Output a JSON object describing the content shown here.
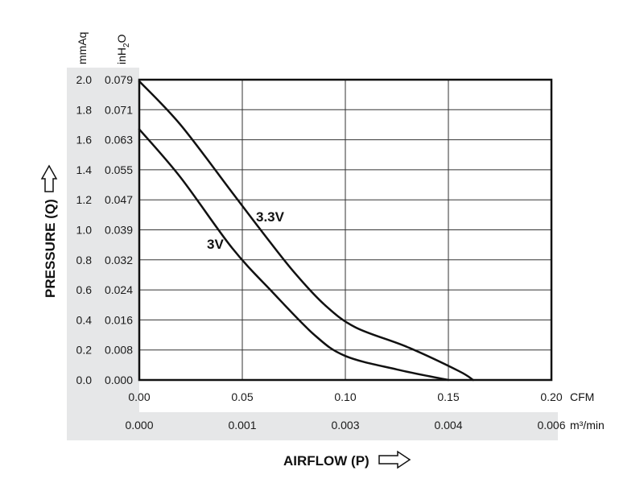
{
  "chart_data": {
    "type": "line",
    "xlabel": "AIRFLOW (P)",
    "ylabel": "PRESSURE (Q)",
    "x_unit_primary": "CFM",
    "x_unit_secondary": "m³/min",
    "y_unit_primary": "mmAq",
    "y_unit_secondary_base": "inH",
    "y_unit_secondary_sub": "2",
    "y_unit_secondary_tail": "O",
    "xlim": [
      0,
      0.2
    ],
    "ylim": [
      0,
      2.0
    ],
    "x_ticks": [
      "0.00",
      "0.05",
      "0.10",
      "0.15",
      "0.20"
    ],
    "x_ticks_secondary": [
      "0.000",
      "0.001",
      "0.003",
      "0.004",
      "0.006"
    ],
    "y_ticks": [
      "0.0",
      "0.2",
      "0.4",
      "0.6",
      "0.8",
      "1.0",
      "1.2",
      "1.4",
      "1.6",
      "1.8",
      "2.0"
    ],
    "y_ticks_secondary": [
      "0.000",
      "0.008",
      "0.016",
      "0.024",
      "0.032",
      "0.039",
      "0.047",
      "0.055",
      "0.063",
      "0.071",
      "0.079"
    ],
    "grid": true,
    "series": [
      {
        "name": "3.3V",
        "color": "#111111",
        "x": [
          0.0,
          0.02,
          0.045,
          0.06,
          0.075,
          0.09,
          0.105,
          0.13,
          0.155,
          0.162
        ],
        "y": [
          1.99,
          1.7,
          1.25,
          0.98,
          0.72,
          0.5,
          0.35,
          0.22,
          0.06,
          0.0
        ]
      },
      {
        "name": "3V",
        "color": "#111111",
        "x": [
          0.0,
          0.02,
          0.045,
          0.065,
          0.085,
          0.1,
          0.125,
          0.15
        ],
        "y": [
          1.67,
          1.35,
          0.88,
          0.58,
          0.3,
          0.16,
          0.07,
          0.0
        ]
      }
    ]
  }
}
